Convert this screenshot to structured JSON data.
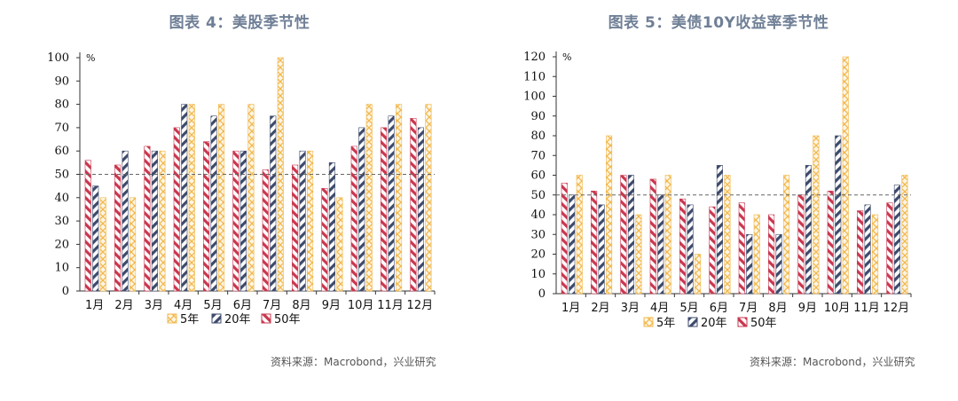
{
  "panels": [
    {
      "title": "图表 4：美股季节性",
      "source": "资料来源：Macrobond，兴业研究"
    },
    {
      "title": "图表 5：美债10Y收益率季节性",
      "source": "资料来源：Macrobond，兴业研究"
    }
  ],
  "colors": {
    "y5": "#f2b84c",
    "y20": "#3d4a6b",
    "y50": "#c9374f",
    "refline": "#666666"
  },
  "chart_data": [
    {
      "type": "bar",
      "categories": [
        "1月",
        "2月",
        "3月",
        "4月",
        "5月",
        "6月",
        "7月",
        "8月",
        "9月",
        "10月",
        "11月",
        "12月"
      ],
      "series": [
        {
          "name": "50年",
          "values": [
            56,
            54,
            62,
            70,
            64,
            60,
            52,
            54,
            44,
            62,
            70,
            74
          ]
        },
        {
          "name": "20年",
          "values": [
            45,
            60,
            60,
            80,
            75,
            60,
            75,
            60,
            55,
            70,
            75,
            70
          ]
        },
        {
          "name": "5年",
          "values": [
            40,
            40,
            60,
            80,
            80,
            80,
            100,
            60,
            40,
            80,
            80,
            80
          ]
        }
      ],
      "legend_order": [
        "5年",
        "20年",
        "50年"
      ],
      "ylim": [
        0,
        100
      ],
      "yticks": [
        0,
        10,
        20,
        30,
        40,
        50,
        60,
        70,
        80,
        90,
        100
      ],
      "reference_line": 50,
      "unit": "%",
      "legend_position": "bottom",
      "grid": false
    },
    {
      "type": "bar",
      "categories": [
        "1月",
        "2月",
        "3月",
        "4月",
        "5月",
        "6月",
        "7月",
        "8月",
        "9月",
        "10月",
        "11月",
        "12月"
      ],
      "series": [
        {
          "name": "50年",
          "values": [
            56,
            52,
            60,
            58,
            48,
            44,
            46,
            40,
            50,
            52,
            42,
            46
          ]
        },
        {
          "name": "20年",
          "values": [
            50,
            45,
            60,
            50,
            45,
            65,
            30,
            30,
            65,
            80,
            45,
            55
          ]
        },
        {
          "name": "5年",
          "values": [
            60,
            80,
            40,
            60,
            20,
            60,
            40,
            60,
            80,
            120,
            40,
            60
          ]
        }
      ],
      "legend_order": [
        "5年",
        "20年",
        "50年"
      ],
      "ylim": [
        0,
        120
      ],
      "yticks": [
        0,
        10,
        20,
        30,
        40,
        50,
        60,
        70,
        80,
        90,
        100,
        110,
        120
      ],
      "reference_line": 50,
      "unit": "%",
      "legend_position": "bottom",
      "grid": false
    }
  ]
}
